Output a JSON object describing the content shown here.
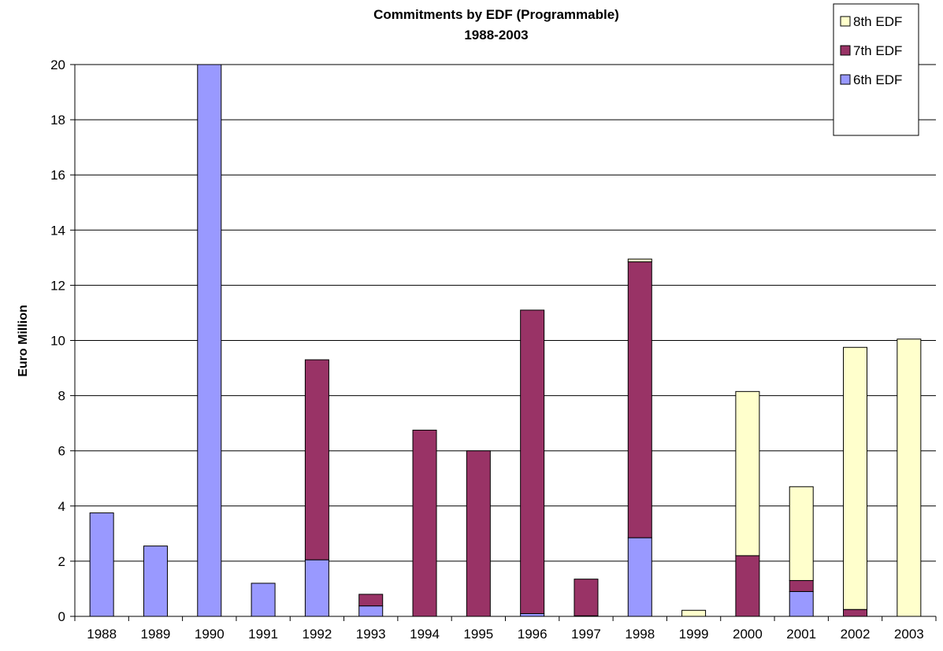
{
  "chart_data": {
    "type": "bar",
    "stacked": true,
    "title": "Commitments by EDF (Programmable)",
    "subtitle": "1988-2003",
    "xlabel": "",
    "ylabel": "Euro Million",
    "ylim": [
      0,
      20
    ],
    "yticks": [
      "0",
      "2",
      "4",
      "6",
      "8",
      "10",
      "12",
      "14",
      "16",
      "18",
      "20"
    ],
    "grid": true,
    "legend_position": "top-right",
    "categories": [
      "1988",
      "1989",
      "1990",
      "1991",
      "1992",
      "1993",
      "1994",
      "1995",
      "1996",
      "1997",
      "1998",
      "1999",
      "2000",
      "2001",
      "2002",
      "2003"
    ],
    "series": [
      {
        "name": "6th EDF",
        "color": "#9999ff",
        "values": [
          3.75,
          2.55,
          20.1,
          1.2,
          2.05,
          0.38,
          0,
          0,
          0.1,
          0.02,
          2.85,
          0,
          0,
          0.9,
          0,
          0
        ]
      },
      {
        "name": "7th EDF",
        "color": "#993366",
        "values": [
          0,
          0,
          0,
          0,
          7.25,
          0.42,
          6.75,
          6.0,
          11.0,
          1.33,
          10.0,
          0,
          2.2,
          0.4,
          0.25,
          0
        ]
      },
      {
        "name": "8th EDF",
        "color": "#ffffcc",
        "values": [
          0,
          0,
          0,
          0,
          0,
          0,
          0,
          0,
          0,
          0,
          0.1,
          0.22,
          5.95,
          3.4,
          9.5,
          10.05
        ]
      }
    ]
  }
}
